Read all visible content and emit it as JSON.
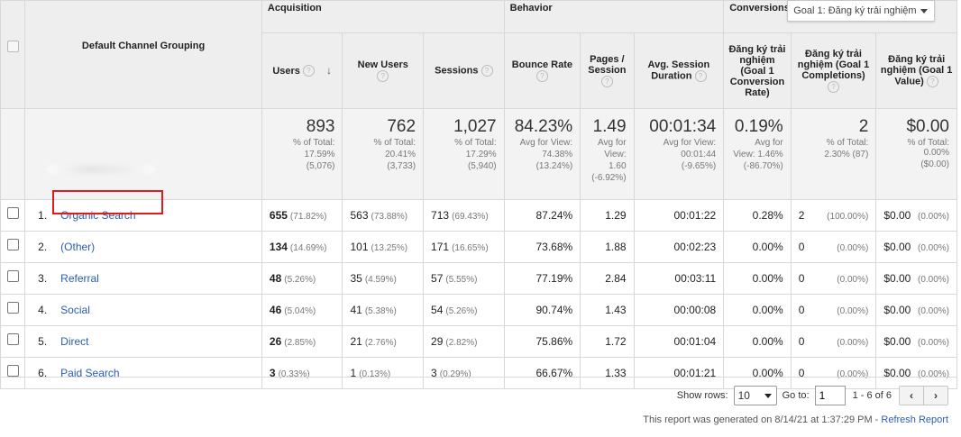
{
  "groups": {
    "acquisition": "Acquisition",
    "behavior": "Behavior",
    "conversions": "Conversions",
    "goal_select": "Goal 1: Đăng ký trải nghiệm"
  },
  "dimension_header": "Default Channel Grouping",
  "columns": {
    "users": "Users",
    "new_users": "New Users",
    "sessions": "Sessions",
    "bounce_rate": "Bounce Rate",
    "pages_session": "Pages / Session",
    "avg_session_duration": "Avg. Session Duration",
    "conv_rate": "Đăng ký trải nghiệm (Goal 1 Conversion Rate)",
    "completions": "Đăng ký trải nghiệm (Goal 1 Completions)",
    "value": "Đăng ký trải nghiệm (Goal 1 Value)"
  },
  "help_glyph": "?",
  "sort_arrow": "↓",
  "totals": {
    "users": {
      "big": "893",
      "l1": "% of Total:",
      "l2": "17.59%",
      "l3": "(5,076)"
    },
    "new_users": {
      "big": "762",
      "l1": "% of Total:",
      "l2": "20.41%",
      "l3": "(3,733)"
    },
    "sessions": {
      "big": "1,027",
      "l1": "% of Total:",
      "l2": "17.29%",
      "l3": "(5,940)"
    },
    "bounce_rate": {
      "big": "84.23%",
      "l1": "Avg for View:",
      "l2": "74.38%",
      "l3": "(13.24%)"
    },
    "pages_session": {
      "big": "1.49",
      "l1": "Avg for",
      "l2": "View:",
      "l3": "1.60",
      "l4": "(-6.92%)"
    },
    "avg_session_duration": {
      "big": "00:01:34",
      "l1": "Avg for View:",
      "l2": "00:01:44",
      "l3": "(-9.65%)"
    },
    "conv_rate": {
      "big": "0.19%",
      "l1": "Avg for",
      "l2": "View: 1.46%",
      "l3": "(-86.70%)"
    },
    "completions": {
      "big": "2",
      "l1": "% of Total:",
      "l2": "2.30% (87)"
    },
    "value": {
      "big": "$0.00",
      "l1": "% of Total: 0.00%",
      "l2": "($0.00)"
    }
  },
  "rows": [
    {
      "n": "1.",
      "channel": "Organic Search",
      "users": "655",
      "users_pct": "(71.82%)",
      "new_users": "563",
      "new_users_pct": "(73.88%)",
      "sessions": "713",
      "sessions_pct": "(69.43%)",
      "bounce": "87.24%",
      "pages": "1.29",
      "duration": "00:01:22",
      "conv": "0.28%",
      "comp": "2",
      "comp_pct": "(100.00%)",
      "value": "$0.00",
      "value_pct": "(0.00%)"
    },
    {
      "n": "2.",
      "channel": "(Other)",
      "users": "134",
      "users_pct": "(14.69%)",
      "new_users": "101",
      "new_users_pct": "(13.25%)",
      "sessions": "171",
      "sessions_pct": "(16.65%)",
      "bounce": "73.68%",
      "pages": "1.88",
      "duration": "00:02:23",
      "conv": "0.00%",
      "comp": "0",
      "comp_pct": "(0.00%)",
      "value": "$0.00",
      "value_pct": "(0.00%)"
    },
    {
      "n": "3.",
      "channel": "Referral",
      "users": "48",
      "users_pct": "(5.26%)",
      "new_users": "35",
      "new_users_pct": "(4.59%)",
      "sessions": "57",
      "sessions_pct": "(5.55%)",
      "bounce": "77.19%",
      "pages": "2.84",
      "duration": "00:03:11",
      "conv": "0.00%",
      "comp": "0",
      "comp_pct": "(0.00%)",
      "value": "$0.00",
      "value_pct": "(0.00%)"
    },
    {
      "n": "4.",
      "channel": "Social",
      "users": "46",
      "users_pct": "(5.04%)",
      "new_users": "41",
      "new_users_pct": "(5.38%)",
      "sessions": "54",
      "sessions_pct": "(5.26%)",
      "bounce": "90.74%",
      "pages": "1.43",
      "duration": "00:00:08",
      "conv": "0.00%",
      "comp": "0",
      "comp_pct": "(0.00%)",
      "value": "$0.00",
      "value_pct": "(0.00%)"
    },
    {
      "n": "5.",
      "channel": "Direct",
      "users": "26",
      "users_pct": "(2.85%)",
      "new_users": "21",
      "new_users_pct": "(2.76%)",
      "sessions": "29",
      "sessions_pct": "(2.82%)",
      "bounce": "75.86%",
      "pages": "1.72",
      "duration": "00:01:04",
      "conv": "0.00%",
      "comp": "0",
      "comp_pct": "(0.00%)",
      "value": "$0.00",
      "value_pct": "(0.00%)"
    },
    {
      "n": "6.",
      "channel": "Paid Search",
      "users": "3",
      "users_pct": "(0.33%)",
      "new_users": "1",
      "new_users_pct": "(0.13%)",
      "sessions": "3",
      "sessions_pct": "(0.29%)",
      "bounce": "66.67%",
      "pages": "1.33",
      "duration": "00:01:21",
      "conv": "0.00%",
      "comp": "0",
      "comp_pct": "(0.00%)",
      "value": "$0.00",
      "value_pct": "(0.00%)"
    }
  ],
  "footer": {
    "show_rows_label": "Show rows:",
    "show_rows_value": "10",
    "goto_label": "Go to:",
    "goto_value": "1",
    "range": "1 - 6 of 6",
    "prev": "‹",
    "next": "›",
    "generated": "This report was generated on 8/14/21 at 1:37:29 PM - ",
    "refresh": "Refresh Report"
  },
  "colors": {
    "link": "#2a5db0",
    "highlight": "#e01b1b",
    "header_bg": "#eeeeee"
  }
}
